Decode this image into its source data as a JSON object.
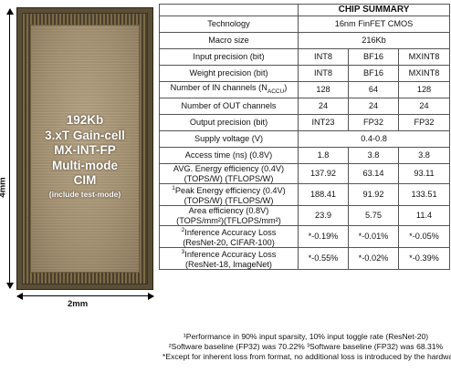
{
  "chip": {
    "lines": [
      "192Kb",
      "3.xT Gain-cell",
      "MX-INT-FP",
      "Multi-mode",
      "CIM"
    ],
    "note": "(include test-mode)",
    "width_label": "2mm",
    "height_label": "4mm"
  },
  "table": {
    "title": "CHIP SUMMARY",
    "technology": {
      "label": "Technology",
      "value": "16nm FinFET CMOS"
    },
    "macro_size": {
      "label": "Macro size",
      "value": "216Kb"
    },
    "rows": [
      {
        "label": "Input precision (bit)",
        "values": [
          "INT8",
          "BF16",
          "MXINT8"
        ]
      },
      {
        "label": "Weight precision (bit)",
        "values": [
          "INT8",
          "BF16",
          "MXINT8"
        ]
      },
      {
        "label": "Number of IN channels (N",
        "label_sub": "ACCU",
        "label_end": ")",
        "values": [
          "128",
          "64",
          "128"
        ]
      },
      {
        "label": "Number of OUT channels",
        "values": [
          "24",
          "24",
          "24"
        ]
      },
      {
        "label": "Output precision (bit)",
        "values": [
          "INT23",
          "FP32",
          "FP32"
        ]
      }
    ],
    "supply": {
      "label": "Supply voltage (V)",
      "value": "0.4-0.8"
    },
    "access": {
      "label": "Access time (ns) (0.8V)",
      "values": [
        "1.8",
        "3.8",
        "3.8"
      ]
    },
    "metrics": [
      {
        "sup": "",
        "line1": "AVG. Energy efficiency (0.4V)",
        "line2": "(TOPS/W) (TFLOPS/W)",
        "values": [
          "137.92",
          "63.14",
          "93.11"
        ]
      },
      {
        "sup": "1",
        "line1": "Peak Energy efficiency (0.4V)",
        "line2": "(TOPS/W) (TFLOPS/W)",
        "values": [
          "188.41",
          "91.92",
          "133.51"
        ]
      },
      {
        "sup": "",
        "line1": "Area efficiency (0.8V)",
        "line2": "(TOPS/mm²)(TFLOPS/mm²)",
        "values": [
          "23.9",
          "5.75",
          "11.4"
        ]
      },
      {
        "sup": "2",
        "line1": "Inference Accuracy Loss",
        "line2": "(ResNet-20, CIFAR-100)",
        "values": [
          "*-0.19%",
          "*-0.01%",
          "*-0.05%"
        ]
      },
      {
        "sup": "3",
        "line1": "Inference Accuracy Loss",
        "line2": "(ResNet-18, ImageNet)",
        "values": [
          "*-0.55%",
          "*-0.02%",
          "*-0.39%"
        ]
      }
    ]
  },
  "footnotes": [
    "¹Performance in 90% input sparsity, 10% input toggle rate (ResNet-20)",
    "²Software baseline (FP32) was 70.22% ³Software baseline (FP32) was 68.31%",
    "*Except for inherent loss from format, no additional loss is introduced by the hardware"
  ]
}
